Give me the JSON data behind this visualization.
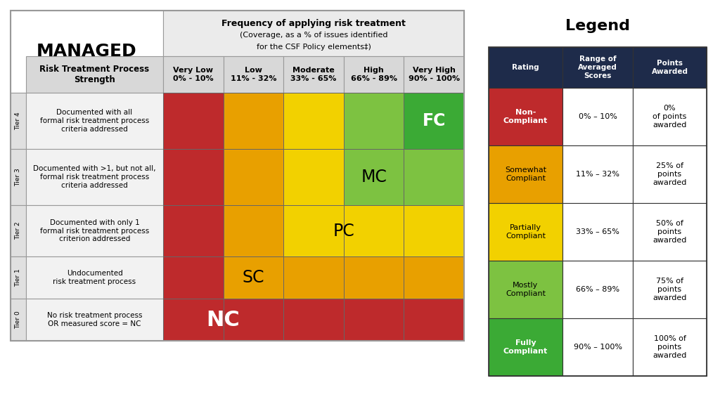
{
  "title_managed": "MANAGED",
  "legend_title": "Legend",
  "freq_header_line1": "Frequency of applying risk treatment",
  "freq_header_line2": "(Coverage, as a % of issues identified",
  "freq_header_line3": "for the CSF Policy elements‡)",
  "freq_col_labels": [
    "Very Low\n0% - 10%",
    "Low\n11% - 32%",
    "Moderate\n33% - 65%",
    "High\n66% - 89%",
    "Very High\n90% - 100%"
  ],
  "tier_labels": [
    "Tier 4",
    "Tier 3",
    "Tier 2",
    "Tier 1",
    "Tier 0"
  ],
  "tier_descriptions": [
    "Documented with all\nformal risk treatment process\ncriteria addressed",
    "Documented with >1, but not all,\nformal risk treatment process\ncriteria addressed",
    "Documented with only 1\nformal risk treatment process\ncriterion addressed",
    "Undocumented\nrisk treatment process",
    "No risk treatment process\nOR measured score = NC"
  ],
  "color_red": "#BE2A2C",
  "color_orange": "#E8A000",
  "color_yellow": "#F2D100",
  "color_light_green": "#7DC241",
  "color_green": "#3BAA35",
  "color_dark_header": "#1E2B4A",
  "color_col_header": "#D8D8D8",
  "color_tier_bg": "#E0E0E0",
  "color_desc_bg": "#F2F2F2",
  "color_freq_header_bg": "#EBEBEB",
  "color_white": "#FFFFFF",
  "color_black": "#000000",
  "legend_ratings": [
    "Non-\nCompliant",
    "Somewhat\nCompliant",
    "Partially\nCompliant",
    "Mostly\nCompliant",
    "Fully\nCompliant"
  ],
  "legend_ranges": [
    "0% – 10%",
    "11% – 32%",
    "33% – 65%",
    "66% – 89%",
    "90% – 100%"
  ],
  "legend_points": [
    "0%\nof points\nawarded",
    "25% of\npoints\nawarded",
    "50% of\npoints\nawarded",
    "75% of\npoints\nawarded",
    "100% of\npoints\nawarded"
  ],
  "legend_colors": [
    "#BE2A2C",
    "#E8A000",
    "#F2D100",
    "#7DC241",
    "#3BAA35"
  ],
  "legend_text_colors": [
    "#FFFFFF",
    "#000000",
    "#000000",
    "#000000",
    "#FFFFFF"
  ],
  "background_color": "#FFFFFF"
}
